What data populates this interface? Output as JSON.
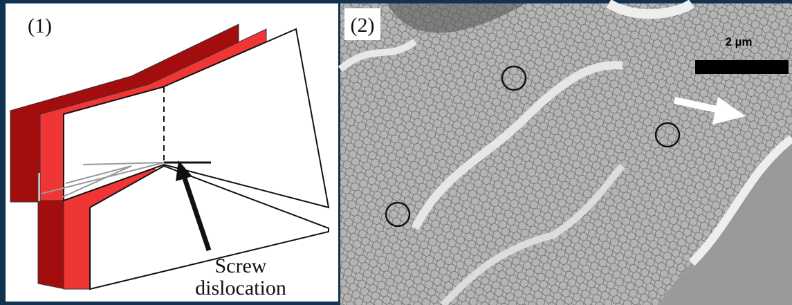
{
  "panels": [
    {
      "label": "(1)",
      "annotation": [
        "Screw",
        "dislocation"
      ]
    },
    {
      "label": "(2)",
      "scale_bar": "2 µm"
    }
  ]
}
